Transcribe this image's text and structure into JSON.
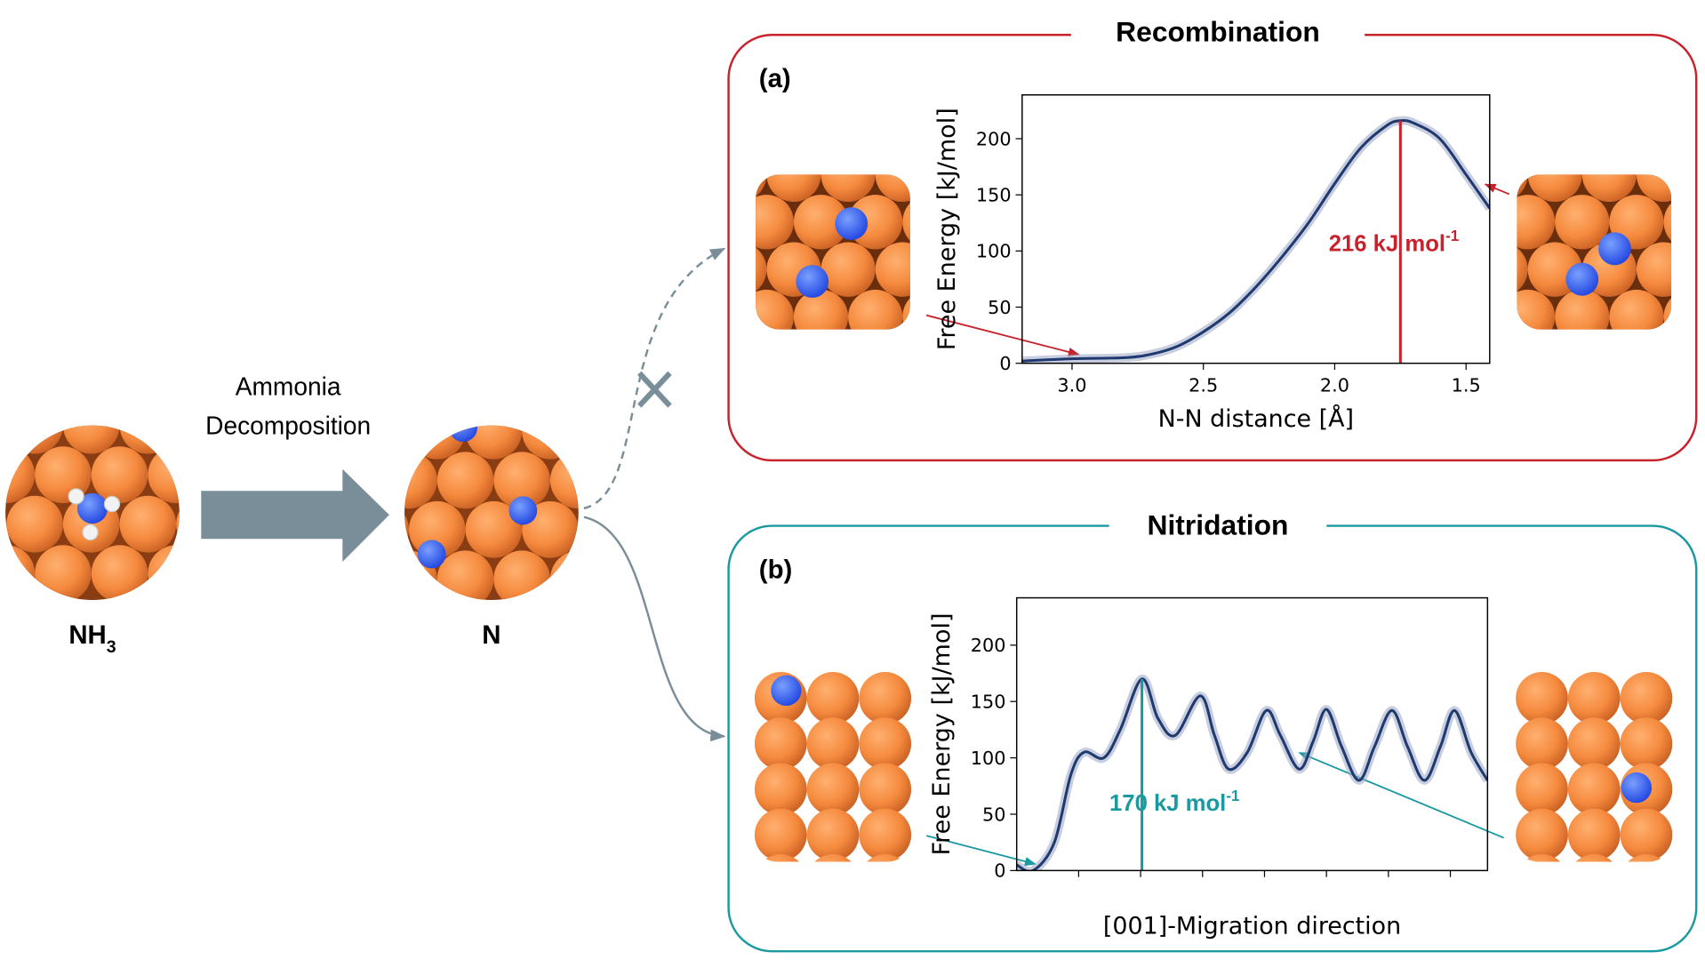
{
  "process": [
    "Ammonia",
    "Decomposition"
  ],
  "reactant": {
    "text": "NH",
    "subscript": "3"
  },
  "intermediate": "N",
  "panels": [
    {
      "title": "Recombination",
      "tag": "(a)"
    },
    {
      "title": "Nitridation",
      "tag": "(b)"
    }
  ],
  "chart_data": [
    {
      "type": "line",
      "xlabel": "N-N distance [Å]",
      "ylabel": "Free Energy [kJ/mol]",
      "xlim": [
        3.19,
        1.41
      ],
      "xticks": [
        {
          "value": 3,
          "label": "3.0"
        },
        2.5,
        {
          "value": 2,
          "label": "2.0"
        },
        1.5
      ],
      "ylim": [
        0,
        239
      ],
      "yticks": [
        0,
        50,
        100,
        150,
        200
      ],
      "color": "#1f3a6e",
      "x": [
        3.19,
        3.0,
        2.8,
        2.7,
        2.6,
        2.5,
        2.4,
        2.3,
        2.2,
        2.1,
        2.0,
        1.9,
        1.8,
        1.75,
        1.7,
        1.6,
        1.5,
        1.41
      ],
      "values": [
        2,
        4,
        5,
        8,
        15,
        28,
        45,
        68,
        95,
        125,
        160,
        192,
        212,
        216,
        214,
        200,
        168,
        138
      ],
      "annotation": {
        "x": 1.75,
        "value": 216,
        "text": "216 kJ mol",
        "superscript": "-1",
        "color": "#c8232c"
      }
    },
    {
      "type": "line",
      "xlabel": "[001]-Migration direction",
      "ylabel": "Free Energy [kJ/mol]",
      "xlim": [
        0,
        100
      ],
      "ylim": [
        0,
        242
      ],
      "yticks": [
        0,
        50,
        100,
        150,
        200
      ],
      "color": "#1f3a6e",
      "x": [
        0,
        3.5,
        8,
        11.5,
        14.3,
        18.5,
        22,
        26.6,
        30,
        33.7,
        39,
        42,
        45,
        49,
        53,
        56,
        60,
        63,
        65.8,
        69,
        72.7,
        76,
        79.7,
        83,
        86.6,
        90,
        93,
        96.5,
        100
      ],
      "values": [
        5,
        0,
        25,
        85,
        105,
        100,
        125,
        170,
        135,
        120,
        155,
        120,
        90,
        105,
        142,
        120,
        90,
        115,
        143,
        110,
        80,
        110,
        142,
        110,
        80,
        110,
        142,
        105,
        80
      ],
      "annotation": {
        "x": 26.6,
        "value": 170,
        "text": "170 kJ mol",
        "superscript": "-1",
        "color": "#1a9aa0"
      }
    }
  ]
}
